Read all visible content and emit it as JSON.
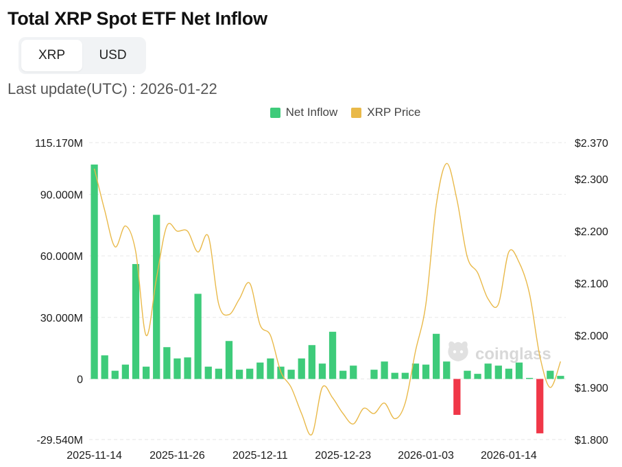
{
  "header": {
    "title": "Total XRP Spot ETF Net Inflow",
    "toggle": [
      "XRP",
      "USD"
    ],
    "toggle_active": "XRP",
    "last_update": "Last update(UTC) : 2026-01-22"
  },
  "watermark": {
    "brand": "coinglass"
  },
  "colors": {
    "inflow": "#3ecb7a",
    "outflow": "#f03748",
    "price": "#e9b949",
    "grid": "#e6e6e6"
  },
  "chart_data": {
    "type": "bar",
    "legend": [
      "Net Inflow",
      "XRP Price"
    ],
    "legend_position": "top-center",
    "grid": true,
    "x_tick_labels": [
      "2025-11-14",
      "2025-11-26",
      "2025-12-11",
      "2025-12-23",
      "2026-01-03",
      "2026-01-14"
    ],
    "y_left": {
      "tick_labels": [
        "115.170M",
        "90.000M",
        "60.000M",
        "30.000M",
        "0",
        "-29.540M"
      ],
      "ticks": [
        115.17,
        90,
        60,
        30,
        0,
        -29.54
      ],
      "range": [
        -29.54,
        115.17
      ],
      "unit": "M XRP"
    },
    "y_right": {
      "tick_labels": [
        "$2.370",
        "$2.300",
        "$2.200",
        "$2.100",
        "$2.000",
        "$1.900",
        "$1.800"
      ],
      "ticks": [
        2.37,
        2.3,
        2.2,
        2.1,
        2.0,
        1.9,
        1.8
      ],
      "range": [
        1.8,
        2.37
      ],
      "unit": "USD"
    },
    "series": [
      {
        "name": "Net Inflow",
        "kind": "bar",
        "axis": "left",
        "values": [
          104.5,
          11.5,
          4.0,
          7.0,
          56.0,
          6.0,
          80.0,
          15.5,
          10.0,
          10.5,
          41.5,
          6.0,
          5.0,
          18.5,
          4.5,
          5.0,
          8.0,
          10.0,
          6.0,
          4.5,
          10.0,
          16.5,
          7.5,
          23.0,
          4.0,
          6.5,
          null,
          4.5,
          8.5,
          3.0,
          3.0,
          7.5,
          7.0,
          22.0,
          8.5,
          -17.5,
          4.0,
          2.5,
          7.5,
          6.5,
          5.0,
          8.0,
          0.5,
          -26.5,
          4.0,
          1.5
        ]
      },
      {
        "name": "XRP Price",
        "kind": "line",
        "axis": "right",
        "points": [
          [
            0,
            2.32
          ],
          [
            1,
            2.24
          ],
          [
            2,
            2.17
          ],
          [
            3,
            2.21
          ],
          [
            4,
            2.16
          ],
          [
            5,
            2.0
          ],
          [
            6,
            2.11
          ],
          [
            7,
            2.21
          ],
          [
            8,
            2.2
          ],
          [
            9,
            2.2
          ],
          [
            10,
            2.16
          ],
          [
            11,
            2.19
          ],
          [
            12,
            2.06
          ],
          [
            13,
            2.04
          ],
          [
            14,
            2.07
          ],
          [
            15,
            2.1
          ],
          [
            16,
            2.02
          ],
          [
            17,
            2.0
          ],
          [
            18,
            1.93
          ],
          [
            19,
            1.9
          ],
          [
            20,
            1.85
          ],
          [
            21,
            1.81
          ],
          [
            22,
            1.9
          ],
          [
            23,
            1.88
          ],
          [
            24,
            1.85
          ],
          [
            25,
            1.83
          ],
          [
            26,
            1.86
          ],
          [
            27,
            1.85
          ],
          [
            28,
            1.87
          ],
          [
            29,
            1.84
          ],
          [
            30,
            1.87
          ],
          [
            31,
            1.97
          ],
          [
            32,
            2.06
          ],
          [
            33,
            2.25
          ],
          [
            34,
            2.33
          ],
          [
            35,
            2.26
          ],
          [
            36,
            2.15
          ],
          [
            37,
            2.12
          ],
          [
            38,
            2.07
          ],
          [
            39,
            2.06
          ],
          [
            40,
            2.16
          ],
          [
            41,
            2.14
          ],
          [
            42,
            2.08
          ],
          [
            43,
            1.96
          ],
          [
            44,
            1.9
          ],
          [
            45,
            1.95
          ]
        ]
      }
    ]
  }
}
